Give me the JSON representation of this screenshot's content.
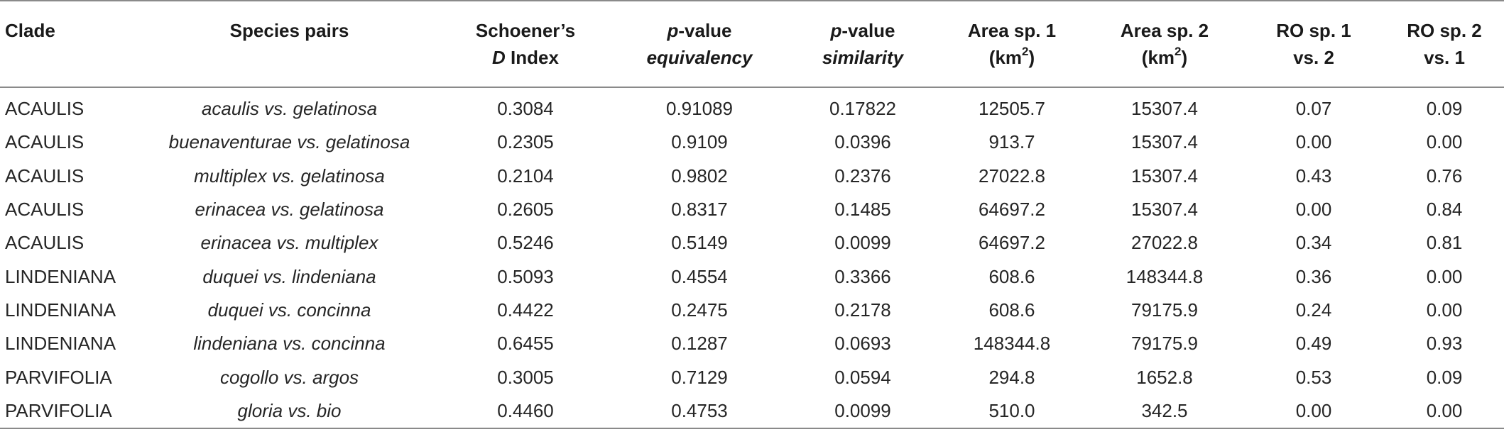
{
  "headers": [
    {
      "line1": "Clade",
      "line2": ""
    },
    {
      "line1": "Species pairs",
      "line2": ""
    },
    {
      "line1": "Schoener’s",
      "line2_italic": "D",
      "line2_rest": " Index"
    },
    {
      "line1_italic": "p",
      "line1_rest": "-value",
      "line2_italic": "equivalency"
    },
    {
      "line1_italic": "p",
      "line1_rest": "-value",
      "line2_italic": "similarity"
    },
    {
      "line1": "Area sp. 1",
      "line2_pre": "(km",
      "line2_sup": "2",
      "line2_post": ")"
    },
    {
      "line1": "Area sp. 2",
      "line2_pre": "(km",
      "line2_sup": "2",
      "line2_post": ")"
    },
    {
      "line1": "RO sp. 1",
      "line2": "vs. 2"
    },
    {
      "line1": "RO sp. 2",
      "line2": "vs. 1"
    }
  ],
  "rows": [
    [
      "ACAULIS",
      "acaulis vs. gelatinosa",
      "0.3084",
      "0.91089",
      "0.17822",
      "12505.7",
      "15307.4",
      "0.07",
      "0.09"
    ],
    [
      "ACAULIS",
      "buenaventurae vs. gelatinosa",
      "0.2305",
      "0.9109",
      "0.0396",
      "913.7",
      "15307.4",
      "0.00",
      "0.00"
    ],
    [
      "ACAULIS",
      "multiplex vs. gelatinosa",
      "0.2104",
      "0.9802",
      "0.2376",
      "27022.8",
      "15307.4",
      "0.43",
      "0.76"
    ],
    [
      "ACAULIS",
      "erinacea vs. gelatinosa",
      "0.2605",
      "0.8317",
      "0.1485",
      "64697.2",
      "15307.4",
      "0.00",
      "0.84"
    ],
    [
      "ACAULIS",
      "erinacea vs. multiplex",
      "0.5246",
      "0.5149",
      "0.0099",
      "64697.2",
      "27022.8",
      "0.34",
      "0.81"
    ],
    [
      "LINDENIANA",
      "duquei vs. lindeniana",
      "0.5093",
      "0.4554",
      "0.3366",
      "608.6",
      "148344.8",
      "0.36",
      "0.00"
    ],
    [
      "LINDENIANA",
      "duquei vs. concinna",
      "0.4422",
      "0.2475",
      "0.2178",
      "608.6",
      "79175.9",
      "0.24",
      "0.00"
    ],
    [
      "LINDENIANA",
      "lindeniana vs. concinna",
      "0.6455",
      "0.1287",
      "0.0693",
      "148344.8",
      "79175.9",
      "0.49",
      "0.93"
    ],
    [
      "PARVIFOLIA",
      "cogollo vs. argos",
      "0.3005",
      "0.7129",
      "0.0594",
      "294.8",
      "1652.8",
      "0.53",
      "0.09"
    ],
    [
      "PARVIFOLIA",
      "gloria vs. bio",
      "0.4460",
      "0.4753",
      "0.0099",
      "510.0",
      "342.5",
      "0.00",
      "0.00"
    ]
  ]
}
